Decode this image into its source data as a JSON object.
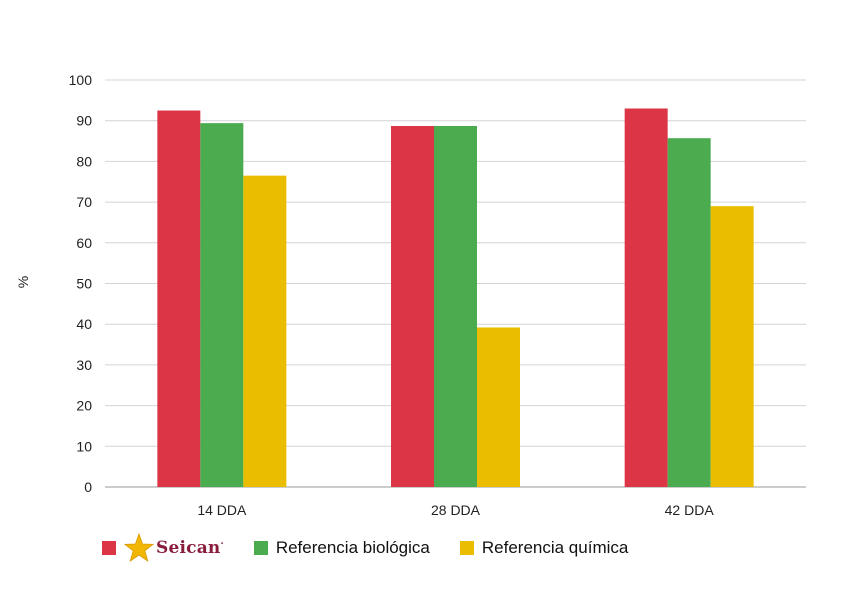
{
  "chart_data": {
    "type": "bar",
    "title": "",
    "xlabel": "",
    "ylabel": "%",
    "ylim": [
      0,
      100
    ],
    "yticks": [
      0,
      10,
      20,
      30,
      40,
      50,
      60,
      70,
      80,
      90,
      100
    ],
    "grid": true,
    "legend_position": "bottom",
    "categories": [
      "14 DDA",
      "28 DDA",
      "42 DDA"
    ],
    "series": [
      {
        "name": "Seican",
        "color": "#dc3545",
        "values": [
          92.5,
          88.7,
          93
        ]
      },
      {
        "name": "Referencia biológica",
        "color": "#4aab4f",
        "values": [
          89.4,
          88.7,
          85.7
        ]
      },
      {
        "name": "Referencia química",
        "color": "#ebbd00",
        "values": [
          76.5,
          39.2,
          69
        ]
      }
    ]
  },
  "legend": {
    "logo_text": "Seican",
    "logo_mark": "·",
    "logo_color": "#8a1c3c",
    "star_color": "#f2b705",
    "item2": "Referencia biológica",
    "item3": "Referencia química"
  }
}
